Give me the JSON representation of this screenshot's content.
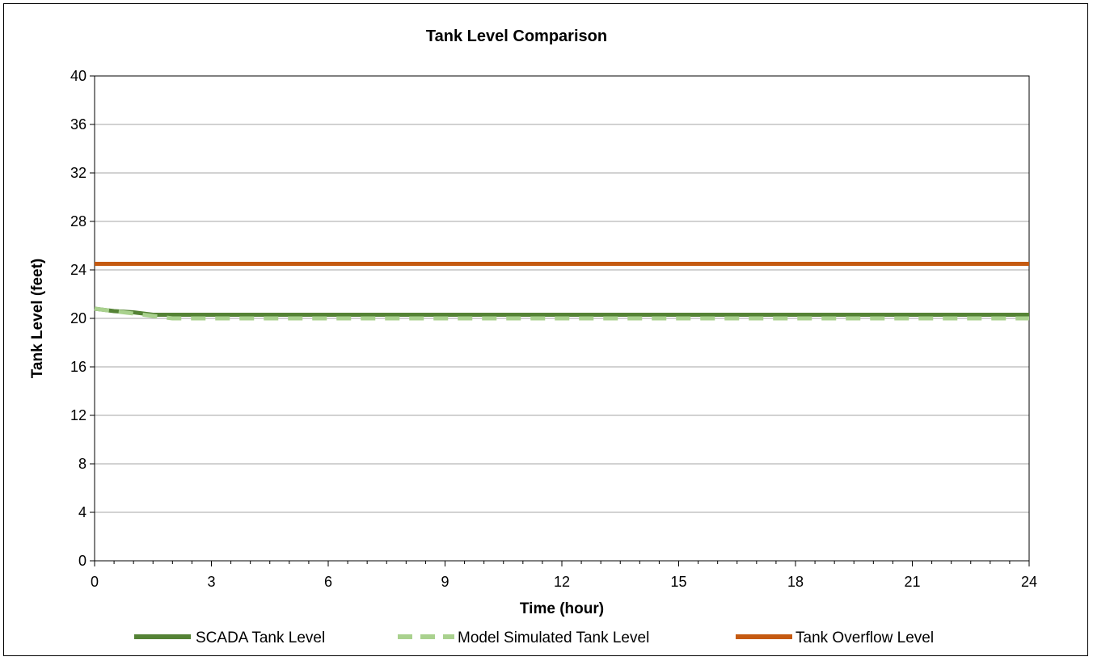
{
  "chart_data": {
    "type": "line",
    "title": "Tank Level Comparison",
    "xlabel": "Time (hour)",
    "ylabel": "Tank Level (feet)",
    "xlim": [
      0,
      24
    ],
    "ylim": [
      0,
      40
    ],
    "x_ticks": [
      "0",
      "3",
      "6",
      "9",
      "12",
      "15",
      "18",
      "21",
      "24"
    ],
    "y_ticks": [
      "0",
      "4",
      "8",
      "12",
      "16",
      "20",
      "24",
      "28",
      "32",
      "36",
      "40"
    ],
    "grid": true,
    "legend_position": "bottom",
    "series": [
      {
        "name": "SCADA Tank Level",
        "color": "#548235",
        "style": "solid",
        "x": [
          0,
          0.5,
          1,
          1.5,
          2,
          3,
          6,
          9,
          12,
          15,
          18,
          21,
          24
        ],
        "y": [
          20.8,
          20.6,
          20.5,
          20.3,
          20.3,
          20.3,
          20.3,
          20.3,
          20.3,
          20.3,
          20.3,
          20.3,
          20.3
        ]
      },
      {
        "name": "Model Simulated Tank Level",
        "color": "#a9d18e",
        "style": "dashed",
        "x": [
          0,
          0.5,
          1,
          1.5,
          2,
          3,
          6,
          9,
          12,
          15,
          18,
          21,
          24
        ],
        "y": [
          20.8,
          20.6,
          20.4,
          20.2,
          20.0,
          20.0,
          20.0,
          20.0,
          20.0,
          20.0,
          20.0,
          20.0,
          20.0
        ]
      },
      {
        "name": "Tank Overflow Level",
        "color": "#c55a11",
        "style": "solid",
        "x": [
          0,
          24
        ],
        "y": [
          24.5,
          24.5
        ]
      }
    ]
  }
}
